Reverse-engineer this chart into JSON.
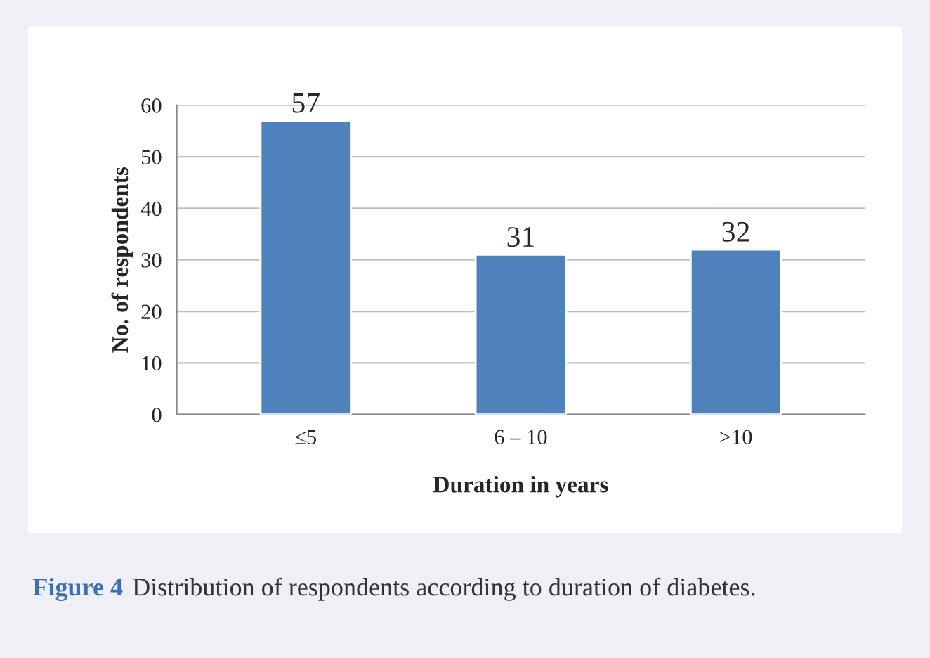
{
  "chart_data": {
    "type": "bar",
    "categories": [
      "≤5",
      "6 – 10",
      ">10"
    ],
    "values": [
      57,
      31,
      32
    ],
    "color": "#4f81bd",
    "xlabel": "Duration in years",
    "ylabel": "No. of respondents",
    "ylim": [
      0,
      60
    ],
    "yticks": [
      0,
      10,
      20,
      30,
      40,
      50,
      60
    ],
    "grid": "y",
    "data_labels": true,
    "annotations": [
      "Figure 4",
      "Distribution of respondents according to duration of diabetes."
    ]
  }
}
